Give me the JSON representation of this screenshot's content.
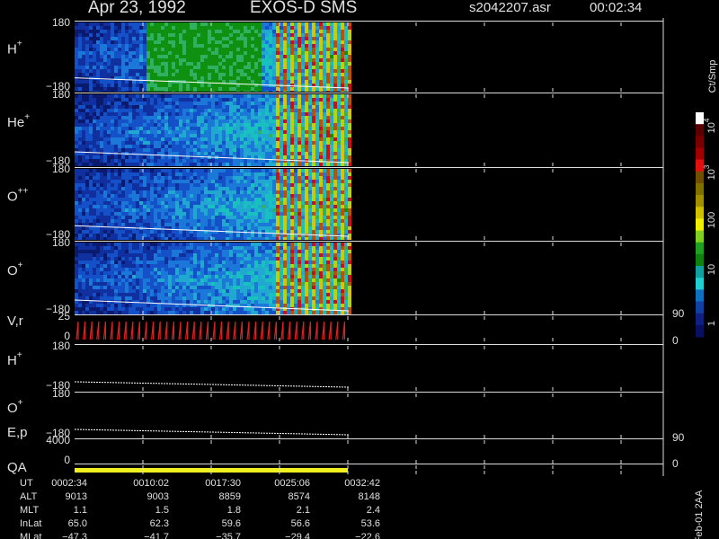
{
  "header": {
    "date": "Apr 23, 1992",
    "instrument": "EXOS-D SMS",
    "file": "s2042207.asr",
    "time": "00:02:34"
  },
  "panels": [
    {
      "name": "H",
      "sup": "+",
      "ticks": [
        "180",
        "−180"
      ]
    },
    {
      "name": "He",
      "sup": "+",
      "ticks": [
        "180",
        "−180"
      ]
    },
    {
      "name": "O",
      "sup": "++",
      "ticks": [
        "180",
        "−180"
      ]
    },
    {
      "name": "O",
      "sup": "+",
      "ticks": [
        "180",
        "−180"
      ]
    },
    {
      "name": "V,r",
      "ticks": [
        "25",
        "0"
      ],
      "right_ticks": [
        "90",
        "0"
      ]
    },
    {
      "name": "H",
      "sup": "+",
      "ticks": [
        "180",
        "−180"
      ]
    },
    {
      "name": "O",
      "sup": "+",
      "ticks": [
        "180",
        "−180"
      ]
    },
    {
      "name": "E,p",
      "ticks": [
        "4000",
        "0"
      ],
      "right_ticks": [
        "90",
        "0"
      ]
    },
    {
      "name": "QA"
    }
  ],
  "colorbar": {
    "unit": "Ct/Smp",
    "labels": [
      {
        "base": "10",
        "exp": "4"
      },
      {
        "base": "10",
        "exp": "3"
      },
      {
        "base": "100"
      },
      {
        "base": "10"
      },
      {
        "base": "1"
      }
    ]
  },
  "footer": {
    "rows": [
      [
        "UT",
        "0002:34",
        "0010:02",
        "0017:30",
        "0025:06",
        "0032:42"
      ],
      [
        "ALT",
        "9013",
        "9003",
        "8859",
        "8574",
        "8148"
      ],
      [
        "MLT",
        "1.1",
        "1.5",
        "1.8",
        "2.1",
        "2.4"
      ],
      [
        "InLat",
        "65.0",
        "62.3",
        "59.6",
        "56.6",
        "53.6"
      ],
      [
        "MLat",
        "−47.3",
        "−41.7",
        "−35.7",
        "−29.4",
        "−22.6"
      ]
    ],
    "stamp": "Feb-01 2AA"
  }
}
